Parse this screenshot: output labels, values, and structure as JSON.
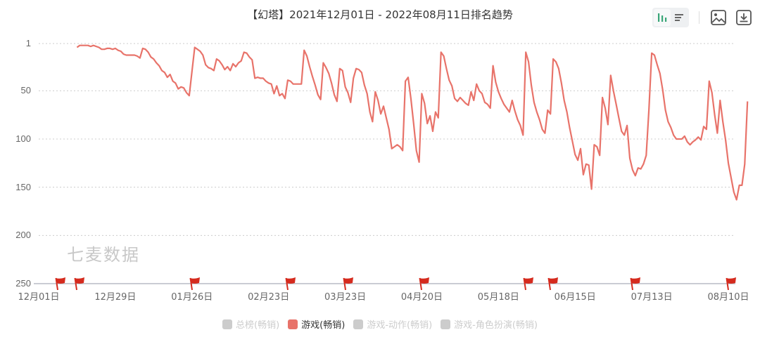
{
  "header": {
    "title": "【幻塔】2021年12月01日 - 2022年08月11日排名趋势"
  },
  "toolbar": {
    "buttons": [
      {
        "name": "bar-chart-view",
        "icon": "bar-chart-icon",
        "active": true
      },
      {
        "name": "list-view",
        "icon": "list-icon",
        "active": false
      },
      {
        "name": "save-image",
        "icon": "image-icon"
      },
      {
        "name": "download",
        "icon": "download-icon"
      }
    ]
  },
  "watermark": "七麦数据",
  "colors": {
    "series": "#e8736a",
    "flag": "#d52b1e",
    "inactive_legend": "#cccccc",
    "grid": "#cccccc",
    "axis": "#b8bcc6"
  },
  "legend": [
    {
      "label": "总榜(畅销)",
      "active": false
    },
    {
      "label": "游戏(畅销)",
      "active": true
    },
    {
      "label": "游戏-动作(畅销)",
      "active": false
    },
    {
      "label": "游戏-角色扮演(畅销)",
      "active": false
    }
  ],
  "chart_data": {
    "type": "line",
    "title": "【幻塔】2021年12月01日 - 2022年08月11日排名趋势",
    "xlabel": "",
    "ylabel": "",
    "y_inverted": true,
    "ylim": [
      1,
      250
    ],
    "yticks": [
      "1",
      "50",
      "100",
      "150",
      "200",
      "250"
    ],
    "xticks": [
      "12月01日",
      "12月29日",
      "01月26日",
      "02月23日",
      "03月23日",
      "04月20日",
      "05月18日",
      "06月15日",
      "07月13日",
      "08月10日"
    ],
    "grid": true,
    "legend_position": "bottom",
    "event_flags_day_offsets": [
      7,
      14,
      56,
      91,
      112,
      140,
      178,
      187,
      217,
      252
    ],
    "series": [
      {
        "name": "游戏(畅销)",
        "start_day_offset": 14,
        "values": [
          5,
          3,
          3,
          3,
          3,
          4,
          3,
          4,
          5,
          7,
          7,
          6,
          6,
          7,
          6,
          8,
          9,
          12,
          13,
          13,
          13,
          13,
          14,
          16,
          6,
          7,
          10,
          15,
          17,
          21,
          24,
          29,
          31,
          36,
          33,
          40,
          42,
          48,
          46,
          47,
          52,
          55,
          30,
          5,
          7,
          9,
          13,
          23,
          26,
          27,
          29,
          17,
          19,
          23,
          28,
          25,
          29,
          22,
          25,
          21,
          19,
          10,
          11,
          15,
          18,
          37,
          36,
          37,
          37,
          40,
          42,
          43,
          53,
          45,
          55,
          53,
          58,
          39,
          40,
          43,
          43,
          43,
          43,
          8,
          14,
          25,
          35,
          44,
          54,
          59,
          21,
          26,
          32,
          42,
          54,
          61,
          27,
          29,
          46,
          52,
          62,
          37,
          27,
          28,
          31,
          44,
          53,
          72,
          82,
          51,
          60,
          74,
          66,
          78,
          90,
          110,
          108,
          106,
          108,
          112,
          40,
          36,
          58,
          84,
          112,
          124,
          53,
          63,
          84,
          76,
          92,
          72,
          78,
          10,
          14,
          27,
          39,
          45,
          58,
          61,
          57,
          60,
          63,
          65,
          51,
          60,
          43,
          50,
          53,
          62,
          64,
          68,
          24,
          41,
          51,
          58,
          64,
          68,
          72,
          60,
          71,
          80,
          86,
          96,
          10,
          20,
          44,
          62,
          72,
          80,
          90,
          94,
          70,
          74,
          17,
          20,
          27,
          42,
          60,
          72,
          88,
          102,
          116,
          122,
          110,
          137,
          126,
          127,
          152,
          106,
          108,
          117,
          57,
          68,
          85,
          34,
          50,
          64,
          78,
          92,
          96,
          86,
          120,
          132,
          138,
          130,
          131,
          126,
          117,
          69,
          11,
          13,
          23,
          32,
          49,
          70,
          82,
          88,
          96,
          100,
          100,
          100,
          97,
          103,
          106,
          103,
          101,
          98,
          101,
          87,
          90,
          40,
          52,
          75,
          94,
          60,
          82,
          101,
          125,
          140,
          155,
          163,
          148,
          148,
          126,
          61
        ]
      }
    ]
  }
}
